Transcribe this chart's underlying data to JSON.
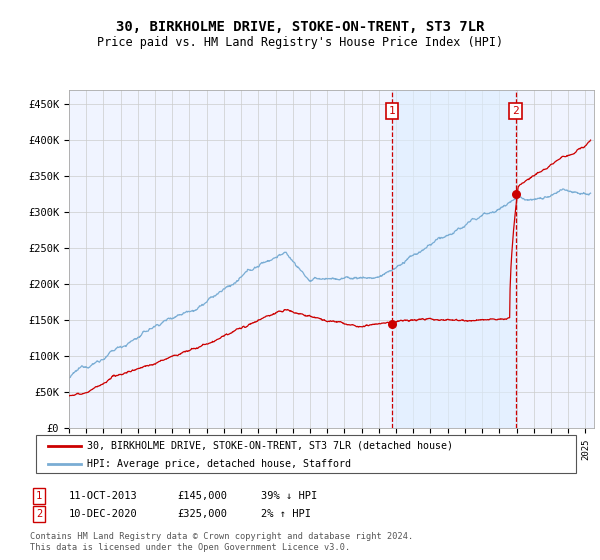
{
  "title": "30, BIRKHOLME DRIVE, STOKE-ON-TRENT, ST3 7LR",
  "subtitle": "Price paid vs. HM Land Registry's House Price Index (HPI)",
  "ylim": [
    0,
    470000
  ],
  "xlim_start": 1995.0,
  "xlim_end": 2025.5,
  "yticks": [
    0,
    50000,
    100000,
    150000,
    200000,
    250000,
    300000,
    350000,
    400000,
    450000
  ],
  "ytick_labels": [
    "£0",
    "£50K",
    "£100K",
    "£150K",
    "£200K",
    "£250K",
    "£300K",
    "£350K",
    "£400K",
    "£450K"
  ],
  "xtick_years": [
    1995,
    1996,
    1997,
    1998,
    1999,
    2000,
    2001,
    2002,
    2003,
    2004,
    2005,
    2006,
    2007,
    2008,
    2009,
    2010,
    2011,
    2012,
    2013,
    2014,
    2015,
    2016,
    2017,
    2018,
    2019,
    2020,
    2021,
    2022,
    2023,
    2024,
    2025
  ],
  "transaction1_x": 2013.78,
  "transaction1_y": 145000,
  "transaction2_x": 2020.94,
  "transaction2_y": 325000,
  "hpi_color": "#7aadd4",
  "hpi_fill": "#ddeeff",
  "price_color": "#cc0000",
  "vline_color": "#cc0000",
  "bg_color": "#f0f4ff",
  "legend1_label": "30, BIRKHOLME DRIVE, STOKE-ON-TRENT, ST3 7LR (detached house)",
  "legend2_label": "HPI: Average price, detached house, Stafford",
  "transaction1_date": "11-OCT-2013",
  "transaction1_price": "£145,000",
  "transaction1_hpi": "39% ↓ HPI",
  "transaction2_date": "10-DEC-2020",
  "transaction2_price": "£325,000",
  "transaction2_hpi": "2% ↑ HPI",
  "footer": "Contains HM Land Registry data © Crown copyright and database right 2024.\nThis data is licensed under the Open Government Licence v3.0.",
  "marker_box_color": "#cc0000"
}
